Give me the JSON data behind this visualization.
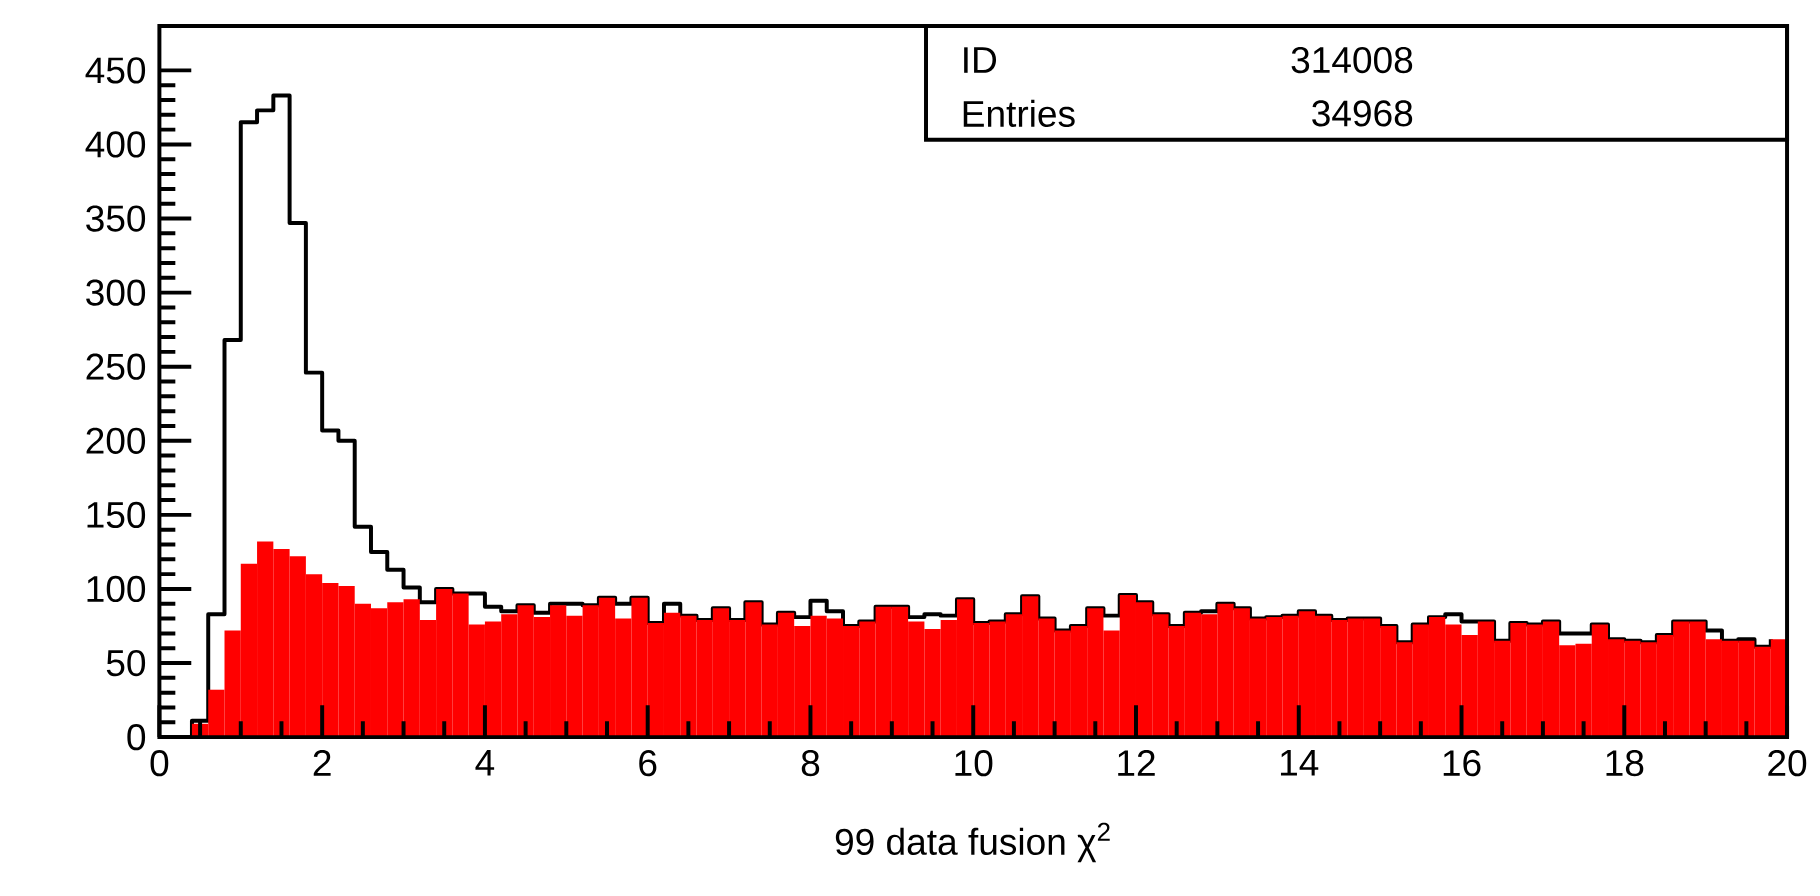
{
  "chart_data": {
    "type": "histogram",
    "xlabel": "99 data fusion χ$^{2}$",
    "annotations": [
      "ID",
      "314008",
      "Entries",
      "34968"
    ],
    "bins": [
      0,
      0.2,
      0.4,
      0.6,
      0.8,
      1,
      1.2,
      1.4,
      1.6,
      1.8,
      2,
      2.2,
      2.4,
      2.6,
      2.8,
      3,
      3.2,
      3.4,
      3.6,
      3.8,
      4,
      4.2,
      4.4,
      4.6,
      4.8,
      5,
      5.2,
      5.4,
      5.6,
      5.8,
      6,
      6.2,
      6.4,
      6.6,
      6.8,
      7,
      7.2,
      7.4,
      7.6,
      7.8,
      8,
      8.2,
      8.4,
      8.6,
      8.8,
      9,
      9.2,
      9.4,
      9.6,
      9.8,
      10,
      10.2,
      10.4,
      10.6,
      10.8,
      11,
      11.2,
      11.4,
      11.6,
      11.8,
      12,
      12.2,
      12.4,
      12.6,
      12.8,
      13,
      13.2,
      13.4,
      13.6,
      13.8,
      14,
      14.2,
      14.4,
      14.6,
      14.8,
      15,
      15.2,
      15.4,
      15.6,
      15.8,
      16,
      16.2,
      16.4,
      16.6,
      16.8,
      17,
      17.2,
      17.4,
      17.6,
      17.8,
      18,
      18.2,
      18.4,
      18.6,
      18.8,
      19,
      19.2,
      19.4,
      19.6,
      19.8,
      20
    ],
    "series": [
      {
        "type": "step",
        "color": "#000000",
        "x": [
          0,
          0.2,
          0.4,
          0.6,
          0.8,
          1,
          1.2,
          1.4,
          1.6,
          1.8,
          2,
          2.2,
          2.4,
          2.6,
          2.8,
          3,
          3.2,
          3.4,
          3.6,
          3.8,
          4,
          4.2,
          4.4,
          4.6,
          4.8,
          5,
          5.2,
          5.4,
          5.6,
          5.8,
          6,
          6.2,
          6.4,
          6.6,
          6.8,
          7,
          7.2,
          7.4,
          7.6,
          7.8,
          8,
          8.2,
          8.4,
          8.6,
          8.8,
          9,
          9.2,
          9.4,
          9.6,
          9.8,
          10,
          10.2,
          10.4,
          10.6,
          10.8,
          11,
          11.2,
          11.4,
          11.6,
          11.8,
          12,
          12.2,
          12.4,
          12.6,
          12.8,
          13,
          13.2,
          13.4,
          13.6,
          13.8,
          14,
          14.2,
          14.4,
          14.6,
          14.8,
          15,
          15.2,
          15.4,
          15.6,
          15.8,
          16,
          16.2,
          16.4,
          16.6,
          16.8,
          17,
          17.2,
          17.4,
          17.6,
          17.8,
          18,
          18.2,
          18.4,
          18.6,
          18.8,
          19,
          19.2,
          19.4,
          19.6,
          19.8
        ],
        "values": [
          0,
          0,
          11,
          83,
          268,
          415,
          423,
          433,
          347,
          246,
          207,
          200,
          142,
          125,
          113,
          101,
          91,
          100,
          97,
          97,
          88,
          85,
          89,
          84,
          90,
          90,
          89,
          94,
          90,
          94,
          77,
          90,
          82,
          79,
          87,
          79,
          91,
          76,
          84,
          81,
          92,
          85,
          75,
          78,
          88,
          88,
          81,
          83,
          82,
          93,
          77,
          78,
          83,
          95,
          80,
          72,
          75,
          87,
          82,
          96,
          91,
          83,
          75,
          84,
          85,
          90,
          87,
          80,
          81,
          82,
          85,
          82,
          79,
          80,
          80,
          75,
          64,
          76,
          81,
          83,
          78,
          78,
          65,
          77,
          76,
          78,
          70,
          70,
          76,
          66,
          65,
          64,
          69,
          78,
          78,
          72,
          65,
          66,
          61,
          66
        ]
      },
      {
        "color": "#ff0000",
        "values": [
          0,
          0,
          9,
          32,
          72,
          117,
          132,
          127,
          122,
          110,
          104,
          102,
          90,
          87,
          91,
          93,
          79,
          100,
          97,
          76,
          78,
          83,
          89,
          81,
          89,
          82,
          89,
          94,
          80,
          94,
          77,
          84,
          82,
          79,
          87,
          79,
          91,
          76,
          84,
          75,
          82,
          80,
          75,
          78,
          88,
          88,
          78,
          73,
          79,
          93,
          77,
          78,
          83,
          95,
          80,
          72,
          75,
          87,
          72,
          96,
          91,
          83,
          75,
          84,
          83,
          90,
          87,
          80,
          81,
          82,
          85,
          82,
          79,
          80,
          80,
          75,
          64,
          76,
          81,
          76,
          69,
          78,
          65,
          77,
          76,
          78,
          62,
          63,
          76,
          66,
          65,
          64,
          69,
          78,
          78,
          66,
          65,
          65,
          61,
          66
        ]
      }
    ],
    "xlim": [
      0,
      20
    ],
    "ylim": [
      0,
      480
    ],
    "xticks": [
      0,
      2,
      4,
      6,
      8,
      10,
      12,
      14,
      16,
      18,
      20
    ],
    "yticks": [
      0,
      50,
      100,
      150,
      200,
      250,
      300,
      350,
      400,
      450
    ]
  }
}
